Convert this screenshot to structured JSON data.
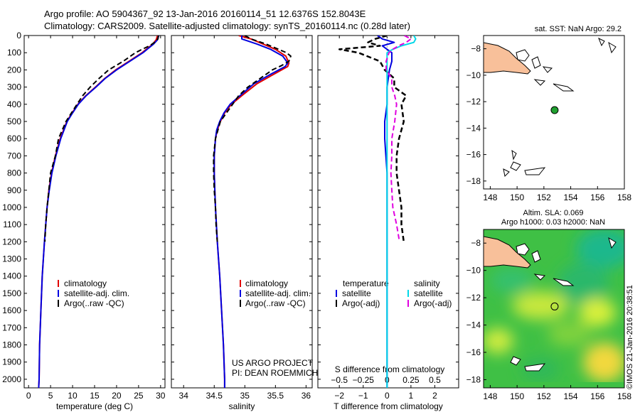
{
  "header": {
    "line1": "Argo profile: AO 5904367_92 13-Jan-2016 20160114_51 12.6376S 152.8043E",
    "line2": "Climatology: CARS2009. Satellite-adjusted climatology: synTS_20160114.nc (0.28d later)"
  },
  "footer_stamp": "©IMOS 21-Jan-2016 20:38:51",
  "colors": {
    "climatology": "#e00000",
    "satellite": "#0000e0",
    "argo": "#000000",
    "sal_sat": "#00d8e8",
    "sal_argo": "#e000e0",
    "land": "#f8c09a",
    "dot": "#20a030"
  },
  "chart_data": [
    {
      "type": "line",
      "id": "temperature",
      "xlabel": "temperature (deg C)",
      "xlim": [
        -1,
        31
      ],
      "xticks": [
        0,
        5,
        10,
        15,
        20,
        25,
        30
      ],
      "ylim": [
        2050,
        0
      ],
      "yticks": [
        0,
        100,
        200,
        300,
        400,
        500,
        600,
        700,
        800,
        900,
        1000,
        1100,
        1200,
        1300,
        1400,
        1500,
        1600,
        1700,
        1800,
        1900,
        2000
      ],
      "legend": [
        "climatology",
        "satellite-adj. clim.",
        "Argo(..raw -QC)"
      ],
      "series": [
        {
          "name": "climatology",
          "depth": [
            0,
            25,
            50,
            75,
            100,
            150,
            200,
            250,
            300,
            350,
            400,
            450,
            500,
            600,
            700,
            800,
            900,
            1000,
            1200,
            1400,
            1600,
            1800,
            2000,
            2050
          ],
          "values": [
            29.3,
            29.0,
            28.2,
            27.0,
            25.8,
            22.8,
            19.8,
            17.3,
            15.2,
            13.0,
            11.2,
            9.9,
            8.7,
            7.2,
            6.1,
            5.2,
            4.6,
            4.2,
            3.6,
            3.1,
            2.8,
            2.5,
            2.4,
            2.3
          ]
        },
        {
          "name": "satellite-adj. clim.",
          "depth": [
            0,
            25,
            50,
            75,
            100,
            150,
            200,
            250,
            300,
            350,
            400,
            450,
            500,
            600,
            700,
            800,
            900,
            1000,
            1200,
            1400,
            1600,
            1800,
            2000,
            2050
          ],
          "values": [
            29.6,
            29.3,
            28.4,
            27.2,
            26.0,
            23.0,
            20.0,
            17.4,
            15.3,
            13.1,
            11.3,
            10.0,
            8.8,
            7.3,
            6.2,
            5.3,
            4.7,
            4.2,
            3.6,
            3.1,
            2.8,
            2.5,
            2.4,
            2.3
          ]
        },
        {
          "name": "Argo(..raw -QC)",
          "depth": [
            0,
            20,
            40,
            60,
            80,
            100,
            150,
            200,
            250,
            300,
            350,
            400,
            500,
            600,
            700,
            800,
            900,
            1000,
            1100,
            1200
          ],
          "values": [
            29.5,
            29.4,
            28.6,
            27.5,
            25.8,
            24.3,
            21.5,
            18.2,
            16.0,
            14.0,
            12.3,
            11.0,
            8.5,
            6.8,
            6.1,
            5.0,
            4.6,
            4.2,
            3.9,
            3.7
          ]
        }
      ]
    },
    {
      "type": "line",
      "id": "salinity",
      "xlabel": "salinity",
      "xlim": [
        33.8,
        36.1
      ],
      "xticks": [
        34,
        34.5,
        35,
        35.5,
        36
      ],
      "ylim": [
        2050,
        0
      ],
      "legend": [
        "climatology",
        "satellite-adj. clim.",
        "Argo(..raw -QC)"
      ],
      "annotation": [
        "US ARGO PROJECT",
        "PI: DEAN ROEMMICH"
      ],
      "series": [
        {
          "name": "climatology",
          "depth": [
            0,
            20,
            50,
            80,
            120,
            160,
            180,
            220,
            280,
            350,
            400,
            450,
            500,
            550,
            600,
            700,
            800,
            900,
            1000,
            1200,
            1400,
            1600,
            1800,
            2000,
            2050
          ],
          "values": [
            34.9,
            35.1,
            35.3,
            35.5,
            35.67,
            35.72,
            35.7,
            35.5,
            35.2,
            34.95,
            34.78,
            34.67,
            34.6,
            34.55,
            34.52,
            34.5,
            34.5,
            34.51,
            34.52,
            34.55,
            34.59,
            34.62,
            34.65,
            34.67,
            34.67
          ]
        },
        {
          "name": "satellite-adj. clim.",
          "depth": [
            0,
            20,
            50,
            80,
            120,
            160,
            180,
            220,
            280,
            350,
            400,
            450,
            500,
            550,
            600,
            700,
            800,
            900,
            1000,
            1200,
            1400,
            1600,
            1800,
            2000,
            2050
          ],
          "values": [
            34.95,
            34.95,
            35.2,
            35.42,
            35.62,
            35.7,
            35.66,
            35.45,
            35.15,
            34.92,
            34.76,
            34.66,
            34.59,
            34.54,
            34.52,
            34.5,
            34.5,
            34.51,
            34.52,
            34.55,
            34.59,
            34.62,
            34.65,
            34.67,
            34.67
          ]
        },
        {
          "name": "Argo(..raw -QC)",
          "depth": [
            0,
            20,
            50,
            80,
            100,
            120,
            150,
            175,
            200,
            250,
            300,
            350,
            400,
            500,
            600,
            700,
            800,
            900,
            1000,
            1100,
            1200
          ],
          "values": [
            35.0,
            35.1,
            35.35,
            35.55,
            35.68,
            35.75,
            35.72,
            35.6,
            35.45,
            35.25,
            35.05,
            34.9,
            34.8,
            34.6,
            34.52,
            34.49,
            34.49,
            34.5,
            34.52,
            34.53,
            34.55
          ]
        }
      ]
    },
    {
      "type": "line",
      "id": "differences",
      "xlabel": "T difference from climatology",
      "xlabel_top": "S difference from climatology",
      "xlim": [
        -2.9,
        3.0
      ],
      "xticks": [
        -2,
        -1,
        0,
        1,
        2
      ],
      "s_ticks": [
        -0.5,
        -0.25,
        0,
        0.25,
        0.5
      ],
      "s_scale": 4,
      "ylim": [
        2050,
        0
      ],
      "legend_temperature": {
        "title": "temperature",
        "items": [
          "satellite",
          "Argo(-adj)"
        ]
      },
      "legend_salinity": {
        "title": "salinity",
        "items": [
          "satellite",
          "Argo(-adj)"
        ]
      },
      "series": [
        {
          "name": "temperature satellite",
          "depth": [
            0,
            20,
            40,
            60,
            80,
            100,
            150,
            200,
            300,
            400,
            500,
            600,
            800,
            1000,
            1200,
            1400,
            1600,
            1800,
            2000,
            2050
          ],
          "values": [
            -0.4,
            -0.2,
            0.3,
            -0.2,
            0.0,
            0.2,
            0.2,
            0.1,
            0.0,
            0.0,
            -0.1,
            -0.1,
            0.0,
            0.0,
            0.0,
            0.0,
            0.0,
            0.0,
            0.0,
            0.0
          ]
        },
        {
          "name": "temperature Argo(-adj)",
          "depth": [
            0,
            20,
            40,
            60,
            80,
            100,
            150,
            200,
            250,
            300,
            350,
            400,
            500,
            600,
            700,
            800,
            900,
            1000,
            1100,
            1200
          ],
          "values": [
            0.0,
            -0.5,
            -0.8,
            -0.3,
            -2.0,
            -1.2,
            -0.3,
            -0.1,
            0.3,
            0.3,
            0.8,
            0.6,
            0.7,
            0.5,
            0.4,
            0.4,
            0.5,
            0.6,
            0.6,
            0.7
          ]
        },
        {
          "name": "salinity satellite",
          "depth": [
            0,
            20,
            40,
            60,
            80,
            100,
            150,
            200,
            300,
            400,
            500,
            600,
            800,
            1000,
            1200,
            1400,
            1600,
            1800,
            2000,
            2050
          ],
          "values": [
            0.28,
            0.3,
            0.28,
            0.15,
            0.06,
            0.0,
            0.0,
            0.0,
            0.0,
            0.0,
            0.0,
            0.0,
            0.0,
            0.0,
            0.0,
            0.0,
            0.0,
            0.0,
            0.0,
            0.0
          ]
        },
        {
          "name": "salinity Argo(-adj)",
          "depth": [
            0,
            20,
            40,
            60,
            80,
            100,
            150,
            200,
            250,
            300,
            350,
            400,
            500,
            600,
            700,
            800,
            900,
            1000,
            1100,
            1200
          ],
          "values": [
            0.18,
            0.25,
            0.2,
            0.12,
            0.06,
            0.02,
            -0.01,
            -0.01,
            0.05,
            0.05,
            0.08,
            0.1,
            0.08,
            0.05,
            0.05,
            0.04,
            0.05,
            0.06,
            0.1,
            0.13
          ]
        }
      ]
    },
    {
      "type": "map",
      "id": "sst-map",
      "title": "sat. SST: NaN Argo: 29.2",
      "xlim": [
        147.5,
        158
      ],
      "ylim": [
        -18.6,
        -7
      ],
      "xticks": [
        148,
        150,
        152,
        154,
        156,
        158
      ],
      "yticks": [
        -8,
        -10,
        -12,
        -14,
        -16,
        -18
      ],
      "marker": {
        "lon": 152.8,
        "lat": -12.64
      }
    },
    {
      "type": "map",
      "id": "sla-map",
      "title_line1": "Altim. SLA: 0.069",
      "title_line2": "Argo h1000: 0.03 h2000: NaN",
      "xlim": [
        147.5,
        158
      ],
      "ylim": [
        -18.6,
        -7
      ],
      "xticks": [
        148,
        150,
        152,
        154,
        156,
        158
      ],
      "yticks": [
        -8,
        -10,
        -12,
        -14,
        -16,
        -18
      ],
      "marker": {
        "lon": 152.8,
        "lat": -12.64
      }
    }
  ]
}
